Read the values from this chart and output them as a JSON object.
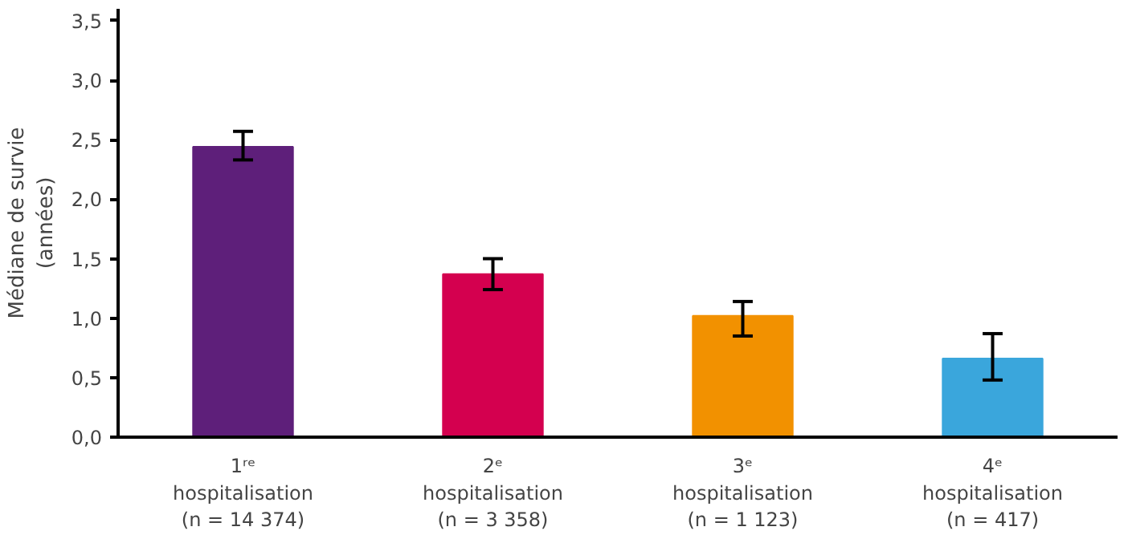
{
  "chart_data": {
    "type": "bar",
    "ylabel": "Médiane de survie\n(années)",
    "categories": [
      "1ʳᵉ\nhospitalisation\n(n = 14 374)",
      "2ᵉ\nhospitalisation\n(n = 3 358)",
      "3ᵉ\nhospitalisation\n(n = 1 123)",
      "4ᵉ\nhospitalisation\n(n = 417)"
    ],
    "values": [
      2.44,
      1.37,
      1.02,
      0.66
    ],
    "colors": [
      "#5e1f7a",
      "#d4004f",
      "#f29100",
      "#3aa6dc"
    ],
    "errors": [
      [
        2.33,
        2.57
      ],
      [
        1.24,
        1.5
      ],
      [
        0.85,
        1.14
      ],
      [
        0.48,
        0.87
      ]
    ],
    "ylim": [
      0,
      3.6
    ],
    "yticks": [
      {
        "value": 0,
        "label": "0,0"
      },
      {
        "value": 0.5,
        "label": "0,5"
      },
      {
        "value": 1,
        "label": "1,0"
      },
      {
        "value": 1.5,
        "label": "1,5"
      },
      {
        "value": 2,
        "label": "2,0"
      },
      {
        "value": 2.5,
        "label": "2,5"
      },
      {
        "value": 3,
        "label": "3,0"
      },
      {
        "value": 3.5,
        "label": "3,5"
      }
    ],
    "grid": false
  }
}
